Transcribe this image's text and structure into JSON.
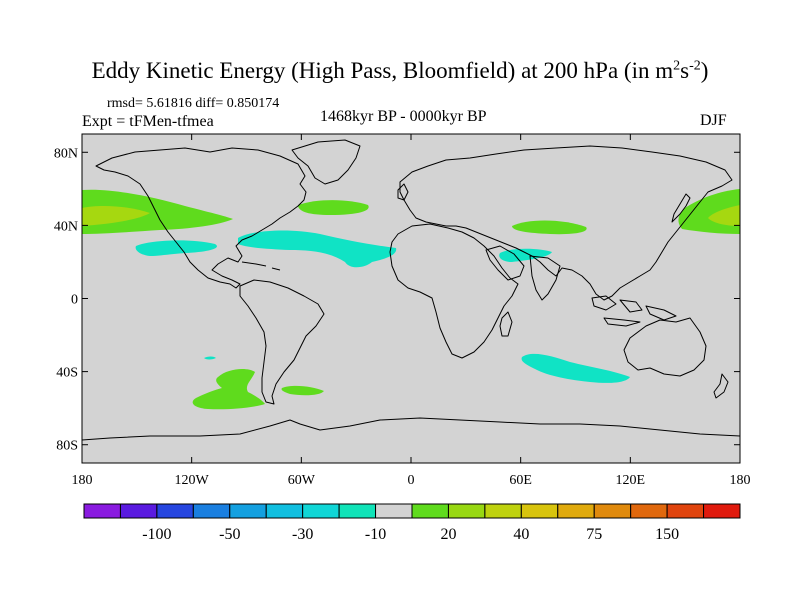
{
  "title": {
    "main": "Eddy Kinetic Energy (High Pass, Bloomfield) at 200 hPa (in m",
    "sup1": "2",
    "mid": "s",
    "sup2": "-2",
    "close": ")"
  },
  "stats": "rmsd= 5.61816 diff= 0.850174",
  "experiment": "Expt = tFMen-tfmea",
  "period": "1468kyr BP - 0000kyr BP",
  "season": "DJF",
  "colors": {
    "land_ocean_bg": "#d3d3d3",
    "coast": "#000000",
    "green": "#5fdb1d",
    "yellowgreen": "#a6d810",
    "cyan": "#10e3c5"
  },
  "axes": {
    "y_ticks": [
      {
        "lat": 80,
        "label": "80N"
      },
      {
        "lat": 40,
        "label": "40N"
      },
      {
        "lat": 0,
        "label": "0"
      },
      {
        "lat": -40,
        "label": "40S"
      },
      {
        "lat": -80,
        "label": "80S"
      }
    ],
    "x_ticks": [
      {
        "lon": -180,
        "label": "180"
      },
      {
        "lon": -120,
        "label": "120W"
      },
      {
        "lon": -60,
        "label": "60W"
      },
      {
        "lon": 0,
        "label": "0"
      },
      {
        "lon": 60,
        "label": "60E"
      },
      {
        "lon": 120,
        "label": "120E"
      },
      {
        "lon": 180,
        "label": "180"
      }
    ]
  },
  "colorbar": {
    "colors": [
      "#8a1be0",
      "#5a1be0",
      "#2646e0",
      "#1a7fe0",
      "#14a0e0",
      "#11bfe0",
      "#10d6d6",
      "#10e3b8",
      "#d3d3d3",
      "#5fdb1d",
      "#98d812",
      "#bfd20e",
      "#d8c40d",
      "#e0aa0d",
      "#e08a0d",
      "#e0680d",
      "#e0440d",
      "#e01a0d"
    ],
    "labels": [
      "-100",
      "-50",
      "-30",
      "-10",
      "20",
      "40",
      "75",
      "150"
    ]
  }
}
